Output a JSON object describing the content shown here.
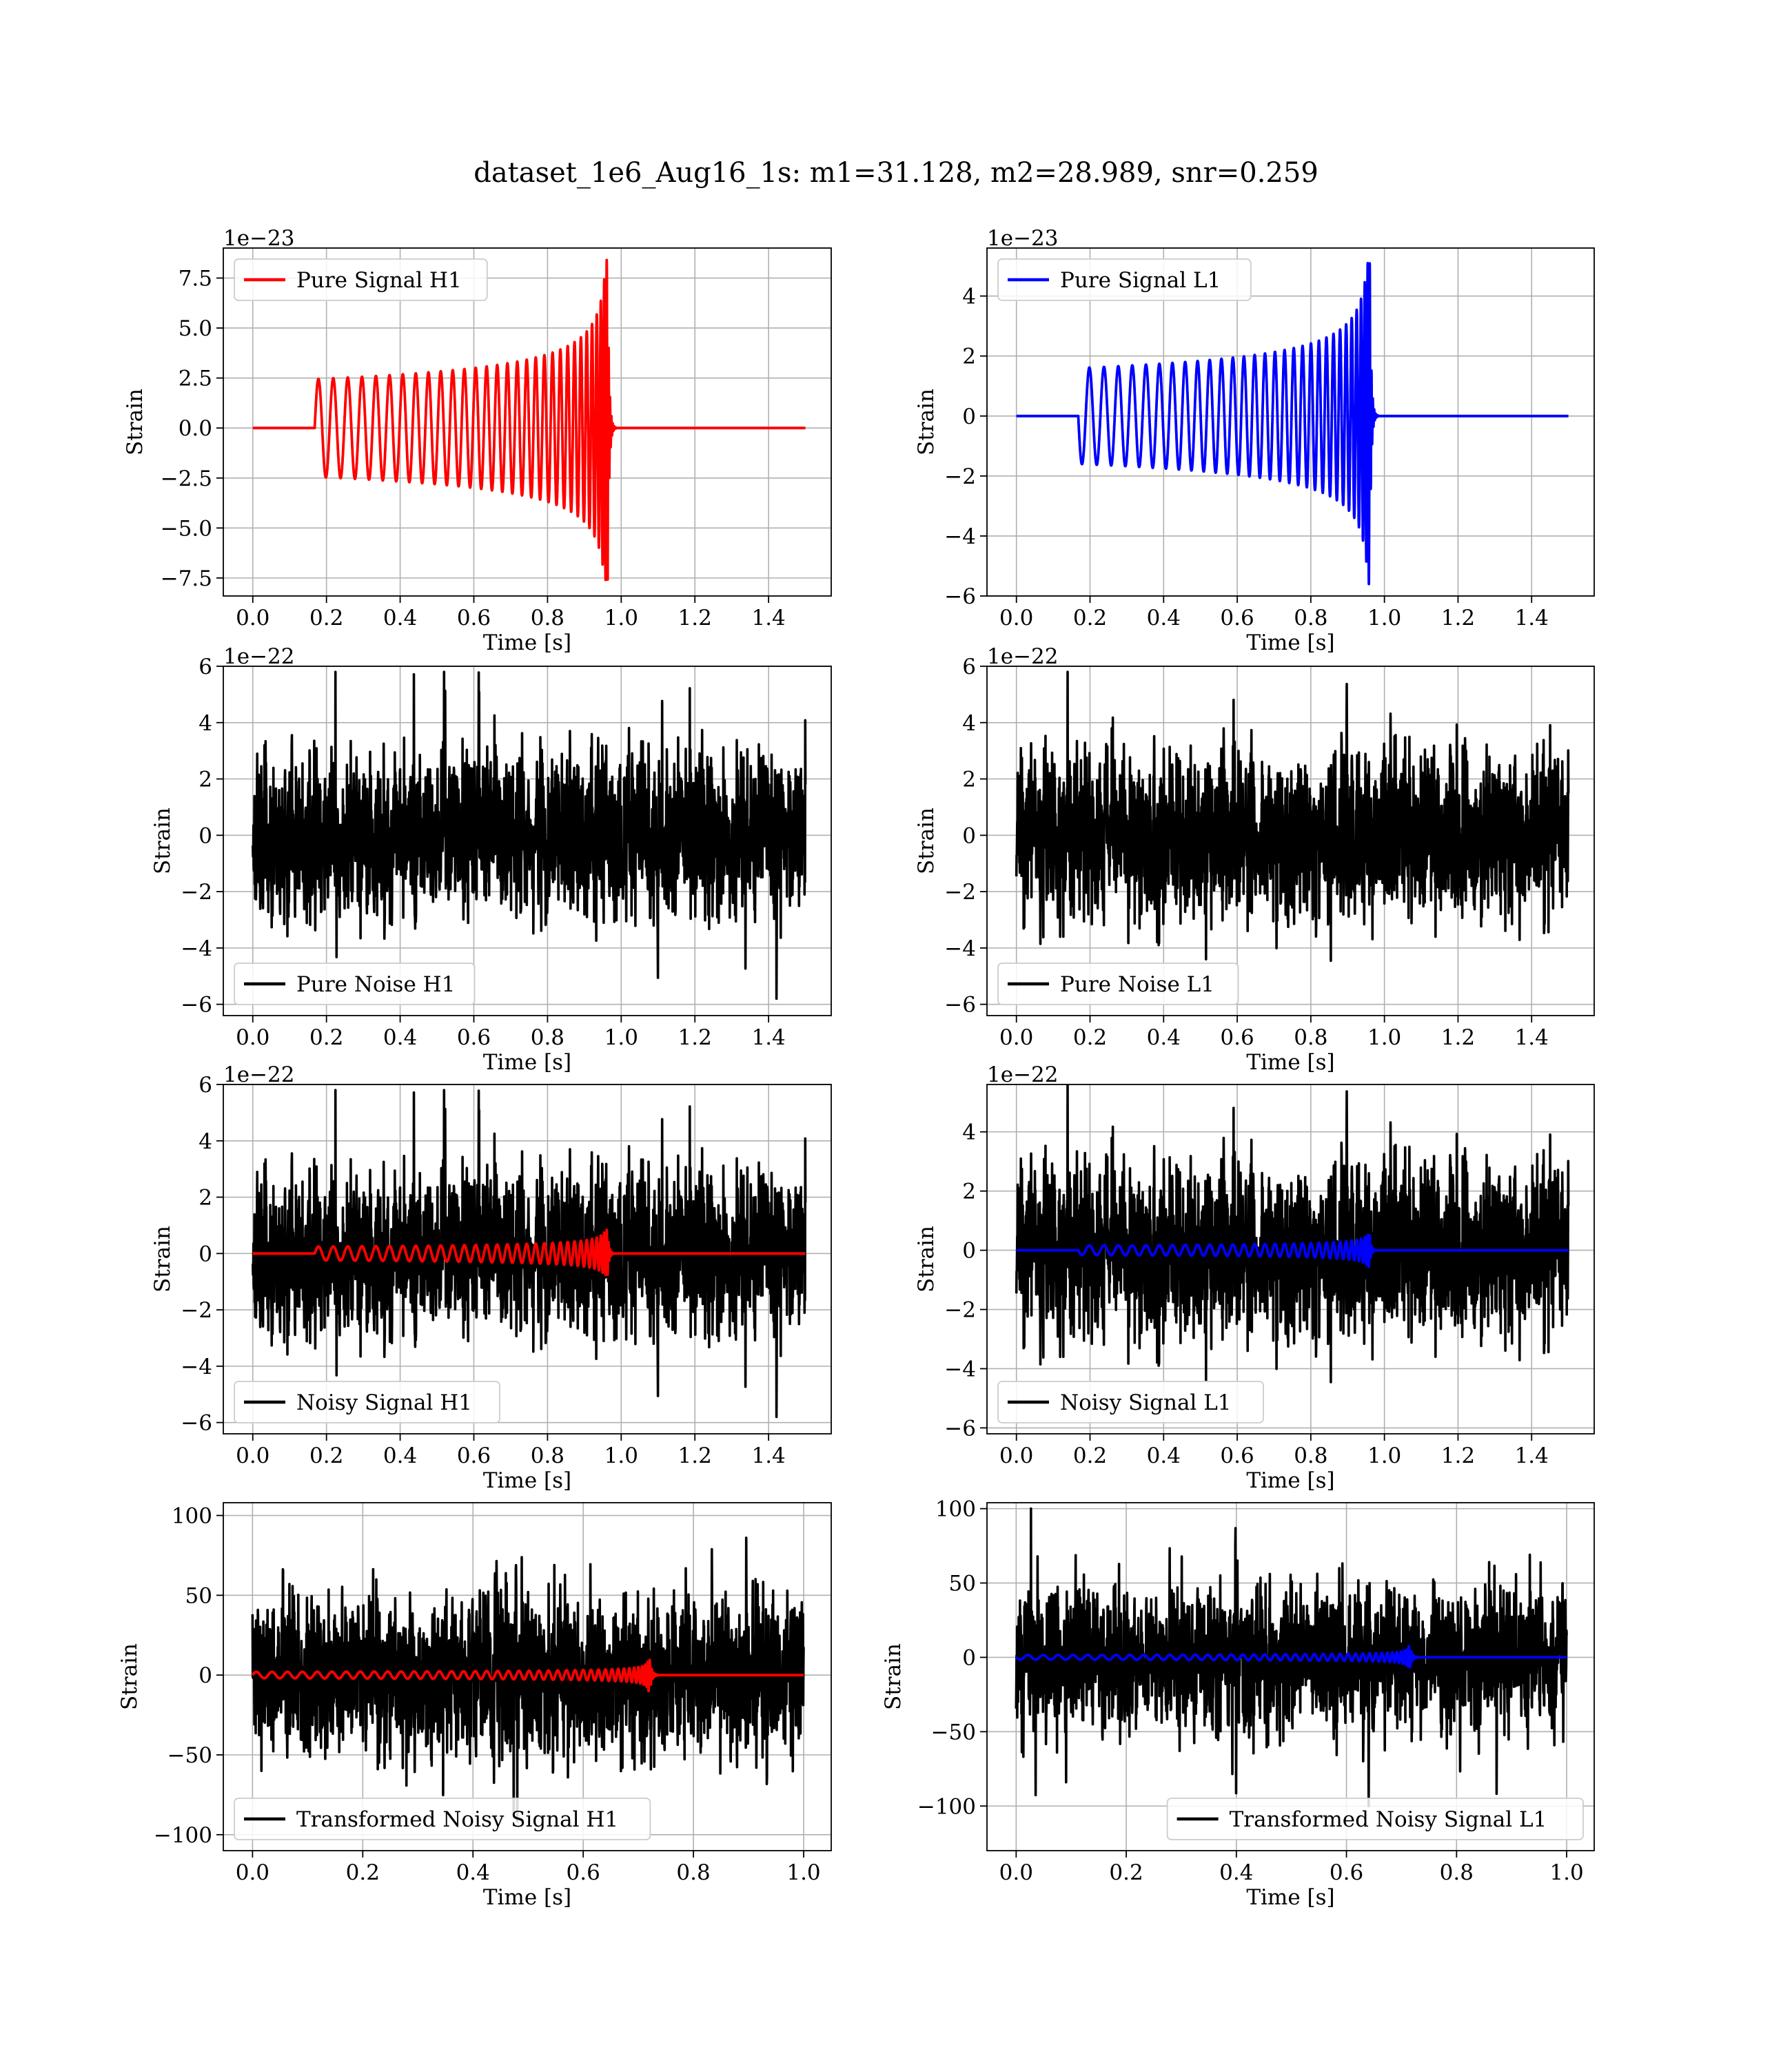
{
  "figure": {
    "title": "dataset_1e6_Aug16_1s: m1=31.128, m2=28.989, snr=0.259"
  },
  "chart_data": [
    {
      "type": "line",
      "id": "pure-signal-h1",
      "offset_label": "1e−23",
      "xlabel": "Time [s]",
      "ylabel": "Strain",
      "xlim": [
        -0.08,
        1.57
      ],
      "ylim": [
        -8.4,
        9.0
      ],
      "xticks": [
        0.0,
        0.2,
        0.4,
        0.6,
        0.8,
        1.0,
        1.2,
        1.4
      ],
      "xtick_labels": [
        "0.0",
        "0.2",
        "0.4",
        "0.6",
        "0.8",
        "1.0",
        "1.2",
        "1.4"
      ],
      "yticks": [
        -7.5,
        -5.0,
        -2.5,
        0.0,
        2.5,
        5.0,
        7.5
      ],
      "ytick_labels": [
        "−7.5",
        "−5.0",
        "−2.5",
        "0.0",
        "2.5",
        "5.0",
        "7.5"
      ],
      "grid": true,
      "legend": {
        "position": "upper-left",
        "entries": [
          "Pure Signal H1"
        ]
      },
      "series": [
        {
          "name": "Pure Signal H1",
          "color": "#ff0000",
          "kind": "chirp",
          "t_start": 0.168,
          "t_merger": 0.965,
          "t_end": 1.5,
          "t_min": 0.0,
          "amp_start": 2.45,
          "amp_peak": 8.4,
          "amp_trough": 7.6,
          "cycles": 31,
          "sign": 1
        }
      ]
    },
    {
      "type": "line",
      "id": "pure-signal-l1",
      "offset_label": "1e−23",
      "xlabel": "Time [s]",
      "ylabel": "Strain",
      "xlim": [
        -0.08,
        1.57
      ],
      "ylim": [
        -6.0,
        5.6
      ],
      "xticks": [
        0.0,
        0.2,
        0.4,
        0.6,
        0.8,
        1.0,
        1.2,
        1.4
      ],
      "xtick_labels": [
        "0.0",
        "0.2",
        "0.4",
        "0.6",
        "0.8",
        "1.0",
        "1.2",
        "1.4"
      ],
      "yticks": [
        -6,
        -4,
        -2,
        0,
        2,
        4
      ],
      "ytick_labels": [
        "−6",
        "−4",
        "−2",
        "0",
        "2",
        "4"
      ],
      "grid": true,
      "legend": {
        "position": "upper-left",
        "entries": [
          "Pure Signal L1"
        ]
      },
      "series": [
        {
          "name": "Pure Signal L1",
          "color": "#0000ff",
          "kind": "chirp",
          "t_start": 0.168,
          "t_merger": 0.962,
          "t_end": 1.5,
          "t_min": 0.0,
          "amp_start": 1.6,
          "amp_peak": 5.1,
          "amp_trough": 5.6,
          "cycles": 31,
          "sign": -1
        }
      ]
    },
    {
      "type": "line",
      "id": "pure-noise-h1",
      "offset_label": "1e−22",
      "xlabel": "Time [s]",
      "ylabel": "Strain",
      "xlim": [
        -0.08,
        1.57
      ],
      "ylim": [
        -6.4,
        6.0
      ],
      "xticks": [
        0.0,
        0.2,
        0.4,
        0.6,
        0.8,
        1.0,
        1.2,
        1.4
      ],
      "xtick_labels": [
        "0.0",
        "0.2",
        "0.4",
        "0.6",
        "0.8",
        "1.0",
        "1.2",
        "1.4"
      ],
      "yticks": [
        -6,
        -4,
        -2,
        0,
        2,
        4,
        6
      ],
      "ytick_labels": [
        "−6",
        "−4",
        "−2",
        "0",
        "2",
        "4",
        "6"
      ],
      "grid": true,
      "legend": {
        "position": "lower-left",
        "entries": [
          "Pure Noise H1"
        ]
      },
      "series": [
        {
          "name": "Pure Noise H1",
          "color": "#000000",
          "kind": "noise",
          "t_min": 0.0,
          "t_end": 1.5,
          "sigma": 1.55,
          "clip": 5.8,
          "seed": 11
        }
      ]
    },
    {
      "type": "line",
      "id": "pure-noise-l1",
      "offset_label": "1e−22",
      "xlabel": "Time [s]",
      "ylabel": "Strain",
      "xlim": [
        -0.08,
        1.57
      ],
      "ylim": [
        -6.4,
        6.0
      ],
      "xticks": [
        0.0,
        0.2,
        0.4,
        0.6,
        0.8,
        1.0,
        1.2,
        1.4
      ],
      "xtick_labels": [
        "0.0",
        "0.2",
        "0.4",
        "0.6",
        "0.8",
        "1.0",
        "1.2",
        "1.4"
      ],
      "yticks": [
        -6,
        -4,
        -2,
        0,
        2,
        4,
        6
      ],
      "ytick_labels": [
        "−6",
        "−4",
        "−2",
        "0",
        "2",
        "4",
        "6"
      ],
      "grid": true,
      "legend": {
        "position": "lower-left",
        "entries": [
          "Pure Noise L1"
        ]
      },
      "series": [
        {
          "name": "Pure Noise L1",
          "color": "#000000",
          "kind": "noise",
          "t_min": 0.0,
          "t_end": 1.5,
          "sigma": 1.55,
          "clip": 5.8,
          "seed": 23
        }
      ]
    },
    {
      "type": "line",
      "id": "noisy-signal-h1",
      "offset_label": "1e−22",
      "xlabel": "Time [s]",
      "ylabel": "Strain",
      "xlim": [
        -0.08,
        1.57
      ],
      "ylim": [
        -6.4,
        6.0
      ],
      "xticks": [
        0.0,
        0.2,
        0.4,
        0.6,
        0.8,
        1.0,
        1.2,
        1.4
      ],
      "xtick_labels": [
        "0.0",
        "0.2",
        "0.4",
        "0.6",
        "0.8",
        "1.0",
        "1.2",
        "1.4"
      ],
      "yticks": [
        -6,
        -4,
        -2,
        0,
        2,
        4,
        6
      ],
      "ytick_labels": [
        "−6",
        "−4",
        "−2",
        "0",
        "2",
        "4",
        "6"
      ],
      "grid": true,
      "legend": {
        "position": "lower-left",
        "entries": [
          "Noisy Signal H1"
        ]
      },
      "series": [
        {
          "name": "Noisy Signal H1",
          "color": "#000000",
          "kind": "noise",
          "t_min": 0.0,
          "t_end": 1.5,
          "sigma": 1.55,
          "clip": 5.8,
          "seed": 11
        },
        {
          "color": "#ff0000",
          "kind": "chirp",
          "t_start": 0.168,
          "t_merger": 0.965,
          "t_end": 1.5,
          "t_min": 0.0,
          "amp_start": 0.245,
          "amp_peak": 0.84,
          "amp_trough": 0.76,
          "cycles": 31,
          "sign": 1
        }
      ]
    },
    {
      "type": "line",
      "id": "noisy-signal-l1",
      "offset_label": "1e−22",
      "xlabel": "Time [s]",
      "ylabel": "Strain",
      "xlim": [
        -0.08,
        1.57
      ],
      "ylim": [
        -6.2,
        5.6
      ],
      "xticks": [
        0.0,
        0.2,
        0.4,
        0.6,
        0.8,
        1.0,
        1.2,
        1.4
      ],
      "xtick_labels": [
        "0.0",
        "0.2",
        "0.4",
        "0.6",
        "0.8",
        "1.0",
        "1.2",
        "1.4"
      ],
      "yticks": [
        -6,
        -4,
        -2,
        0,
        2,
        4
      ],
      "ytick_labels": [
        "−6",
        "−4",
        "−2",
        "0",
        "2",
        "4"
      ],
      "grid": true,
      "legend": {
        "position": "lower-left",
        "entries": [
          "Noisy Signal L1"
        ]
      },
      "series": [
        {
          "name": "Noisy Signal L1",
          "color": "#000000",
          "kind": "noise",
          "t_min": 0.0,
          "t_end": 1.5,
          "sigma": 1.55,
          "clip": 5.6,
          "seed": 23
        },
        {
          "color": "#0000ff",
          "kind": "chirp",
          "t_start": 0.168,
          "t_merger": 0.962,
          "t_end": 1.5,
          "t_min": 0.0,
          "amp_start": 0.16,
          "amp_peak": 0.51,
          "amp_trough": 0.56,
          "cycles": 31,
          "sign": -1
        }
      ]
    },
    {
      "type": "line",
      "id": "transformed-noisy-signal-h1",
      "offset_label": "",
      "xlabel": "Time [s]",
      "ylabel": "Strain",
      "xlim": [
        -0.053,
        1.05
      ],
      "ylim": [
        -110,
        108
      ],
      "xticks": [
        0.0,
        0.2,
        0.4,
        0.6,
        0.8,
        1.0
      ],
      "xtick_labels": [
        "0.0",
        "0.2",
        "0.4",
        "0.6",
        "0.8",
        "1.0"
      ],
      "yticks": [
        -100,
        -50,
        0,
        50,
        100
      ],
      "ytick_labels": [
        "−100",
        "−50",
        "0",
        "50",
        "100"
      ],
      "grid": true,
      "legend": {
        "position": "lower-left",
        "entries": [
          "Transformed Noisy Signal H1"
        ]
      },
      "series": [
        {
          "name": "Transformed Noisy Signal H1",
          "color": "#000000",
          "kind": "noise",
          "t_min": 0.0,
          "t_end": 1.0,
          "sigma": 27,
          "clip": 100,
          "seed": 41
        },
        {
          "color": "#ff0000",
          "kind": "chirp",
          "t_start": 0.0,
          "t_merger": 0.72,
          "t_end": 1.0,
          "t_min": 0.0,
          "amp_start": 2.0,
          "amp_peak": 20,
          "amp_trough": 21,
          "cycles": 40,
          "sign": 1
        }
      ]
    },
    {
      "type": "line",
      "id": "transformed-noisy-signal-l1",
      "offset_label": "",
      "xlabel": "Time [s]",
      "ylabel": "Strain",
      "xlim": [
        -0.053,
        1.05
      ],
      "ylim": [
        -130,
        104
      ],
      "xticks": [
        0.0,
        0.2,
        0.4,
        0.6,
        0.8,
        1.0
      ],
      "xtick_labels": [
        "0.0",
        "0.2",
        "0.4",
        "0.6",
        "0.8",
        "1.0"
      ],
      "yticks": [
        -100,
        -50,
        0,
        50,
        100
      ],
      "ytick_labels": [
        "−100",
        "−50",
        "0",
        "50",
        "100"
      ],
      "grid": true,
      "legend": {
        "position": "lower-right",
        "entries": [
          "Transformed Noisy Signal L1"
        ]
      },
      "series": [
        {
          "name": "Transformed Noisy Signal L1",
          "color": "#000000",
          "kind": "noise",
          "t_min": 0.0,
          "t_end": 1.0,
          "sigma": 26,
          "clip": 100,
          "seed": 57
        },
        {
          "color": "#0000ff",
          "kind": "chirp",
          "t_start": 0.0,
          "t_merger": 0.715,
          "t_end": 1.0,
          "t_min": 0.0,
          "amp_start": 1.5,
          "amp_peak": 14,
          "amp_trough": 15,
          "cycles": 40,
          "sign": -1
        }
      ]
    }
  ]
}
